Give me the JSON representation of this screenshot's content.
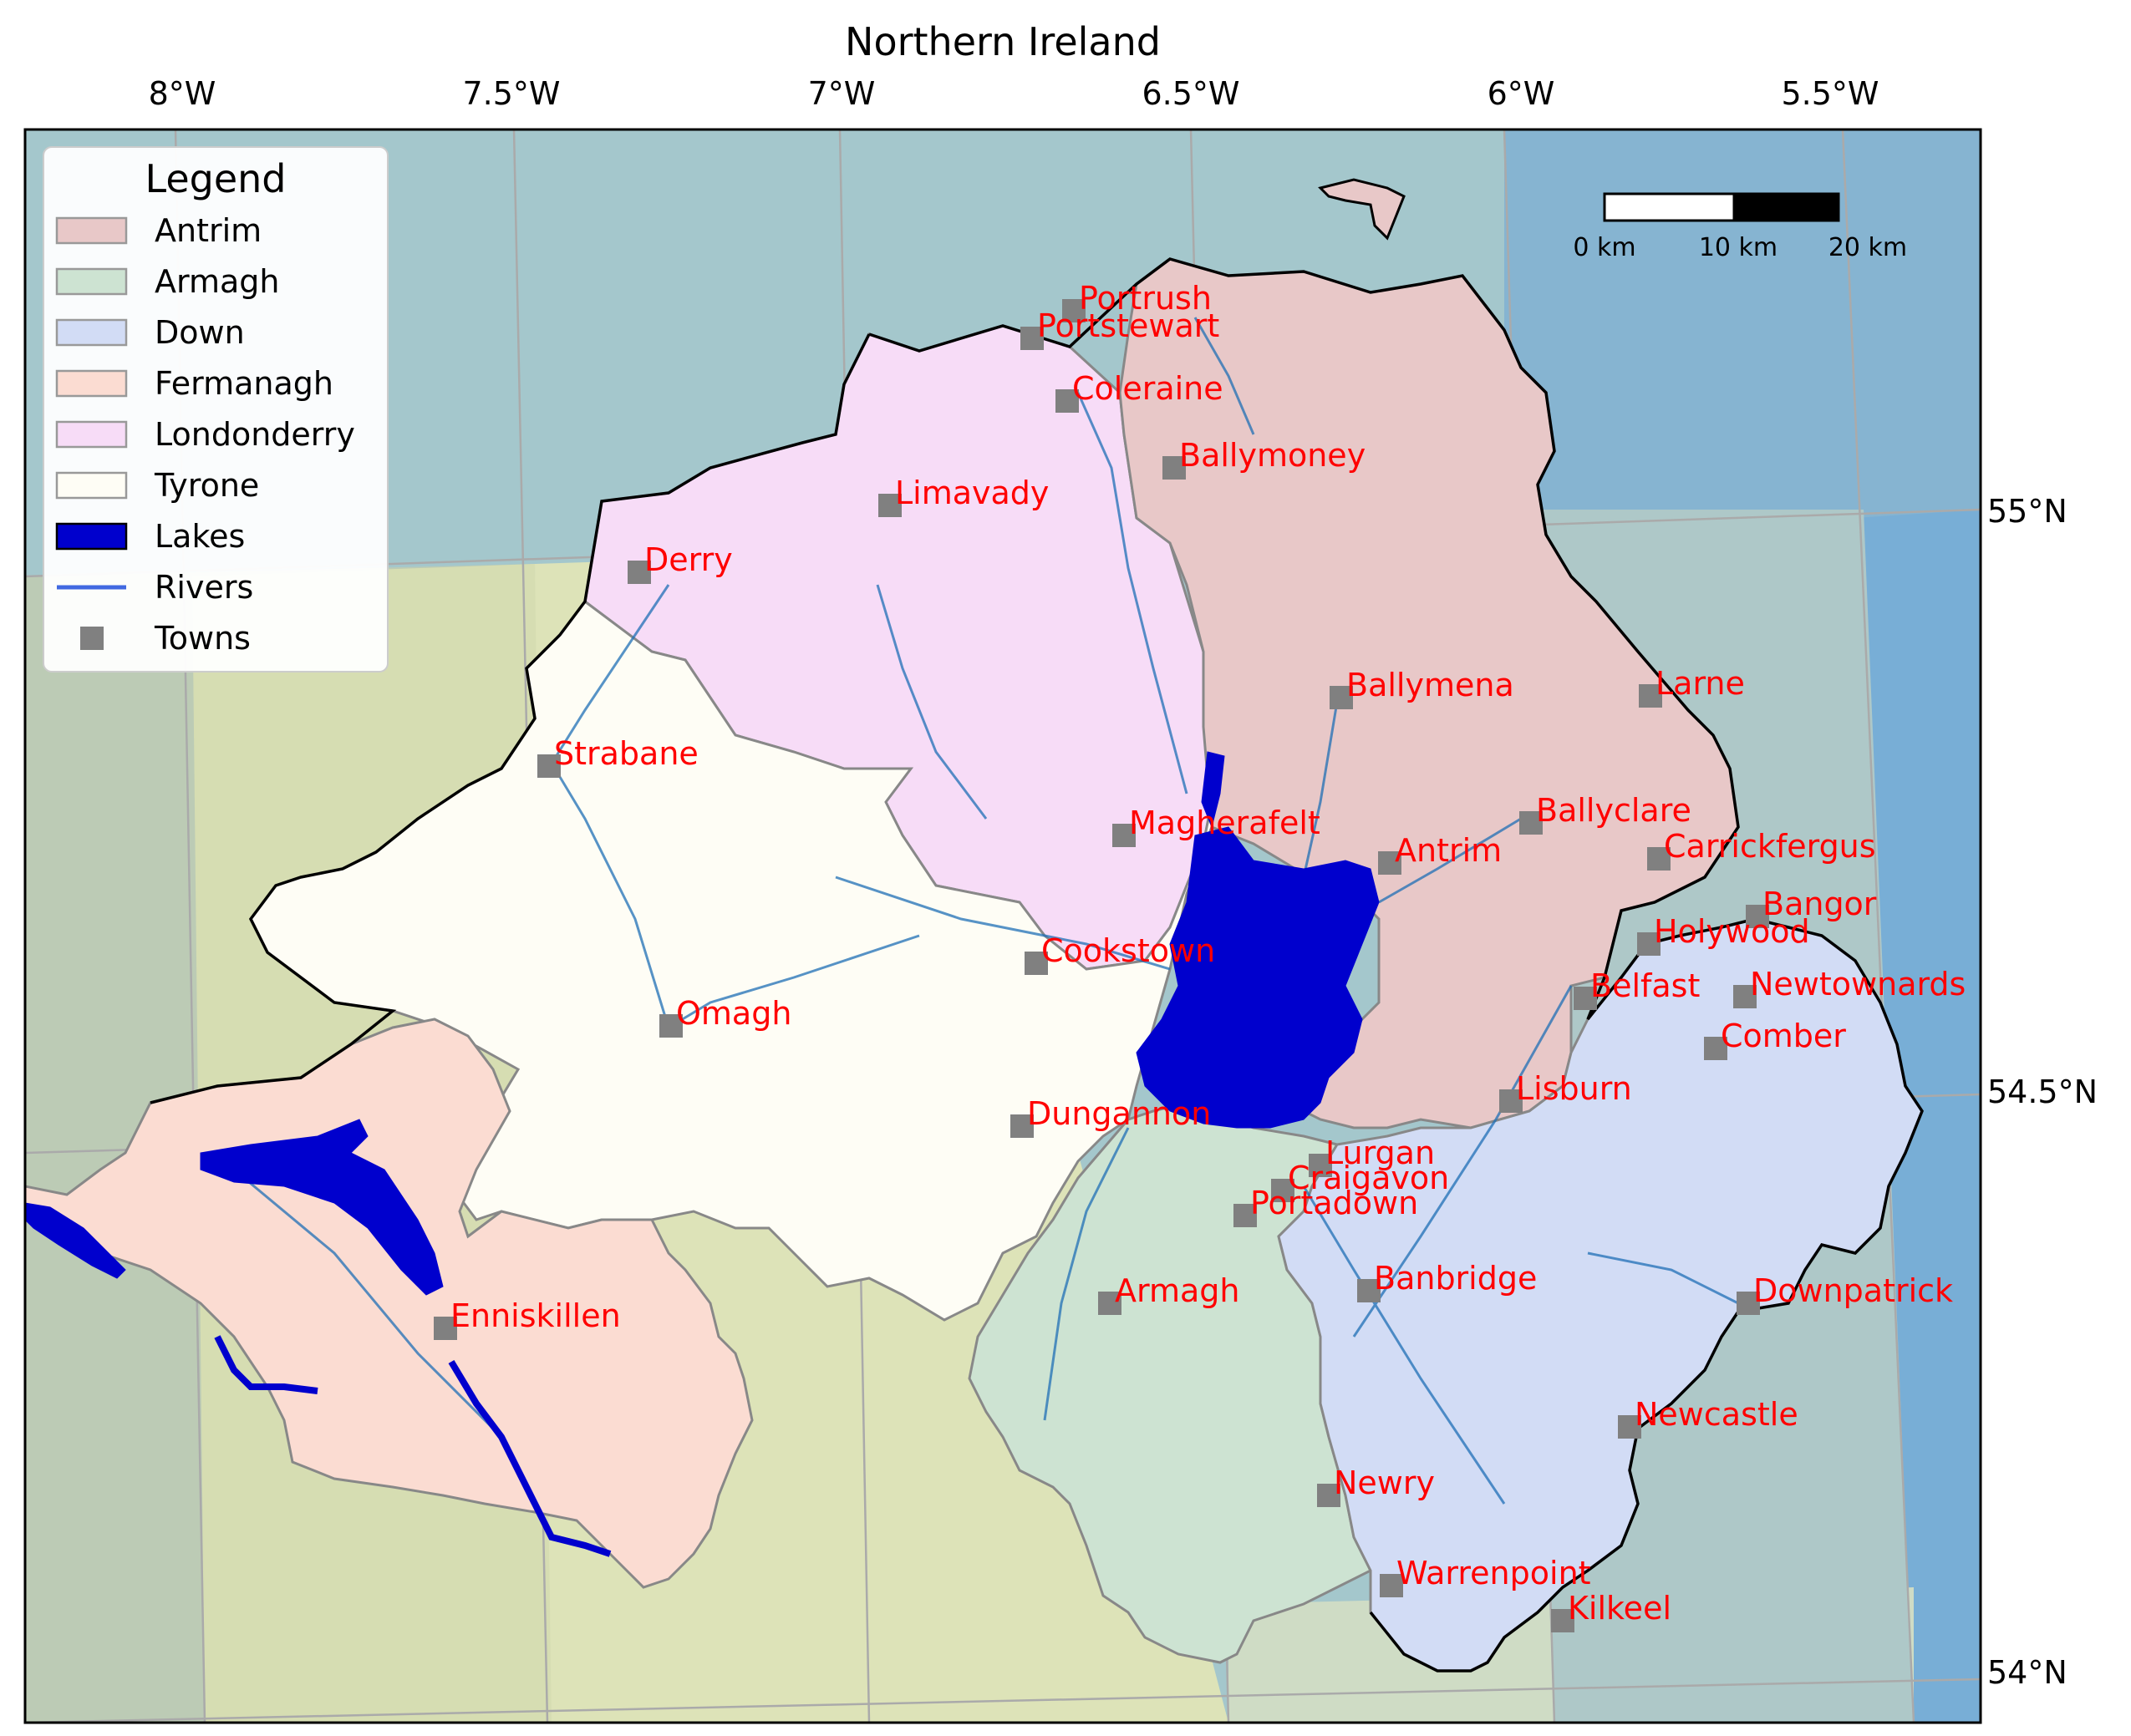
{
  "title": "Northern Ireland",
  "lon_ticks": [
    "8°W",
    "7.5°W",
    "7°W",
    "6.5°W",
    "6°W",
    "5.5°W"
  ],
  "lat_ticks": [
    "55°N",
    "54.5°N",
    "54°N"
  ],
  "legend": {
    "title": "Legend",
    "items": [
      {
        "label": "Antrim",
        "kind": "patch",
        "color": "#e8c8c8"
      },
      {
        "label": "Armagh",
        "kind": "patch",
        "color": "#cde3d2"
      },
      {
        "label": "Down",
        "kind": "patch",
        "color": "#d2dcf5"
      },
      {
        "label": "Fermanagh",
        "kind": "patch",
        "color": "#fbdcd2"
      },
      {
        "label": "Londonderry",
        "kind": "patch",
        "color": "#f7dcf7"
      },
      {
        "label": "Tyrone",
        "kind": "patch",
        "color": "#fefdf5"
      },
      {
        "label": "Lakes",
        "kind": "patch",
        "color": "#0000cd"
      },
      {
        "label": "Rivers",
        "kind": "line",
        "color": "#4169e1"
      },
      {
        "label": "Towns",
        "kind": "marker",
        "color": "#808080"
      }
    ]
  },
  "scale_bar": {
    "labels": [
      "0 km",
      "10 km",
      "20 km"
    ]
  },
  "colors": {
    "sea": "#8fb6d0",
    "land_bg": "#d9e1b6",
    "river": "#1f6fb5",
    "lake": "#0000cd",
    "town_marker": "#808080",
    "town_label": "#ff0000"
  },
  "towns": [
    {
      "name": "Portrush"
    },
    {
      "name": "Portstewart"
    },
    {
      "name": "Coleraine"
    },
    {
      "name": "Ballymoney"
    },
    {
      "name": "Limavady"
    },
    {
      "name": "Derry"
    },
    {
      "name": "Ballymena"
    },
    {
      "name": "Larne"
    },
    {
      "name": "Strabane"
    },
    {
      "name": "Ballyclare"
    },
    {
      "name": "Magherafelt"
    },
    {
      "name": "Antrim"
    },
    {
      "name": "Carrickfergus"
    },
    {
      "name": "Bangor"
    },
    {
      "name": "Holywood"
    },
    {
      "name": "Cookstown"
    },
    {
      "name": "Belfast"
    },
    {
      "name": "Newtownards"
    },
    {
      "name": "Omagh"
    },
    {
      "name": "Comber"
    },
    {
      "name": "Lisburn"
    },
    {
      "name": "Dungannon"
    },
    {
      "name": "Lurgan"
    },
    {
      "name": "Craigavon"
    },
    {
      "name": "Portadown"
    },
    {
      "name": "Armagh"
    },
    {
      "name": "Banbridge"
    },
    {
      "name": "Downpatrick"
    },
    {
      "name": "Enniskillen"
    },
    {
      "name": "Newcastle"
    },
    {
      "name": "Newry"
    },
    {
      "name": "Warrenpoint"
    },
    {
      "name": "Kilkeel"
    }
  ]
}
